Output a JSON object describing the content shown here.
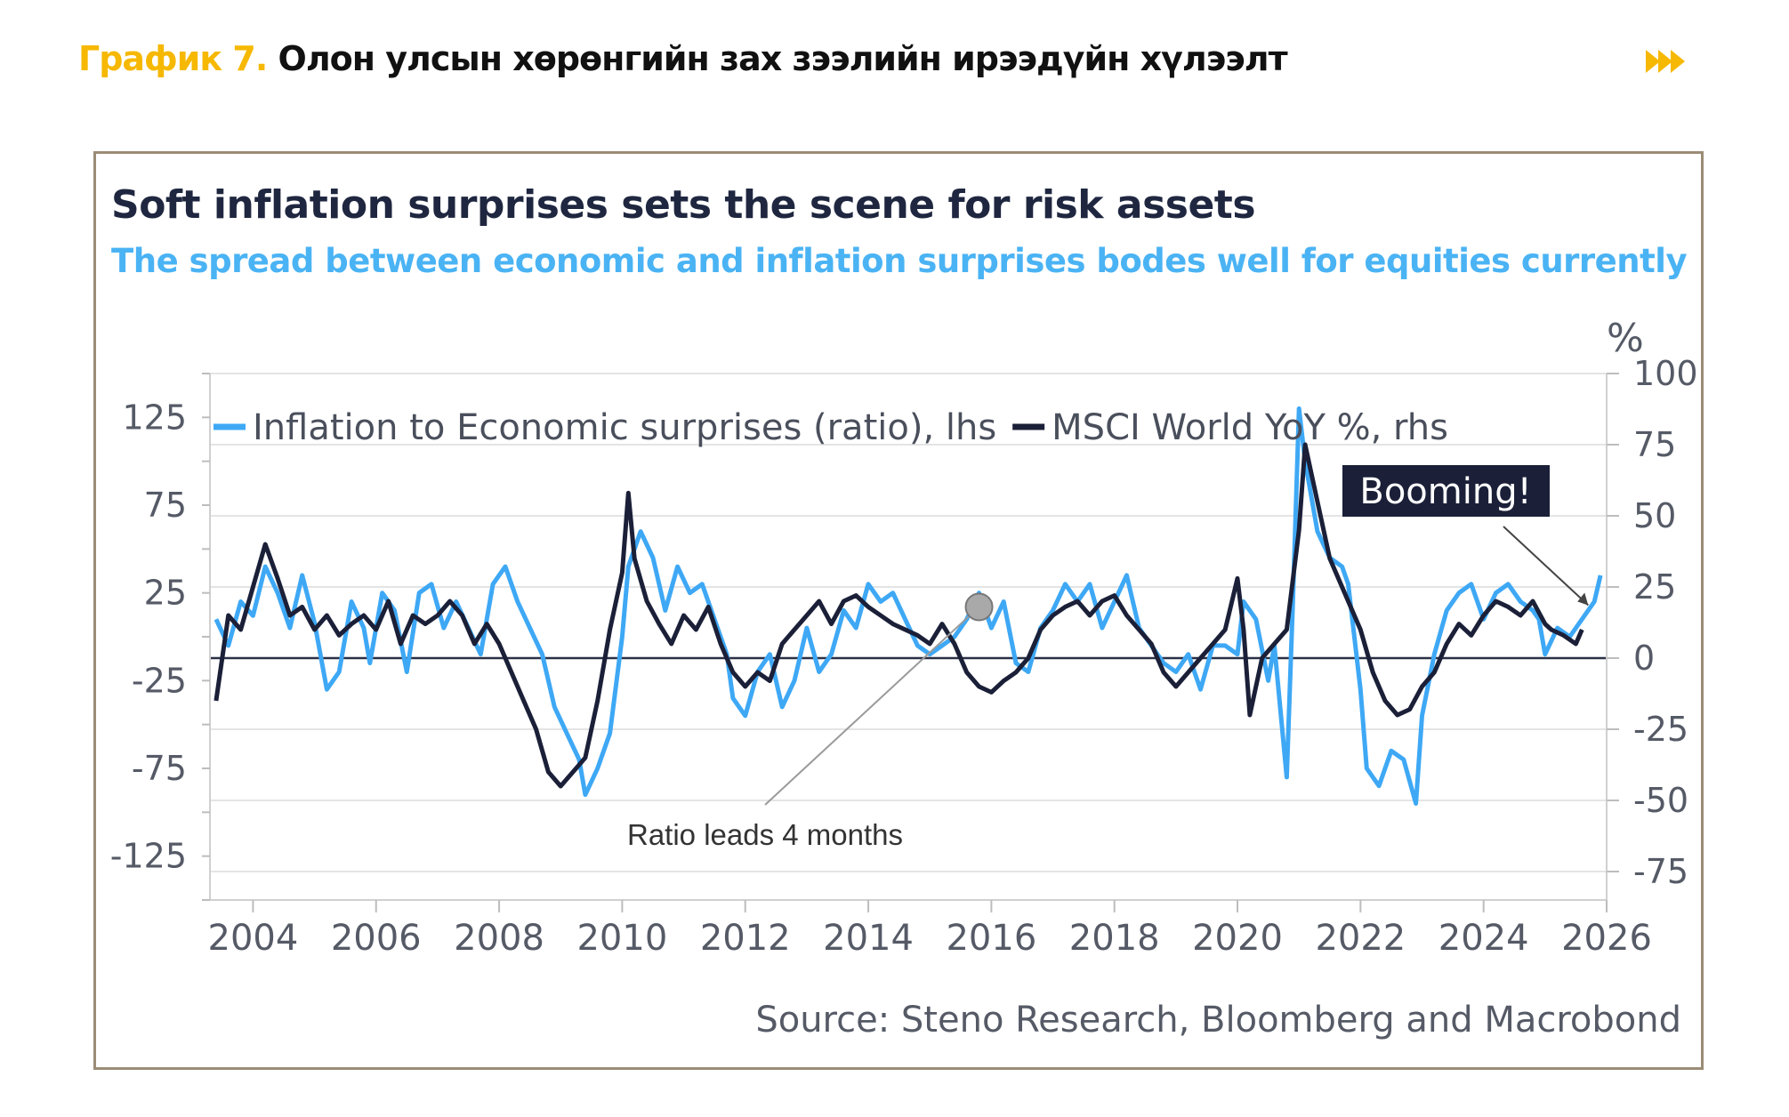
{
  "header": {
    "label": "График 7.",
    "title": "Олон улсын хөрөнгийн зах зээлийн ирээдүйн хүлээлт",
    "accent_color": "#f6b800",
    "icon": "fast-forward-icon"
  },
  "chart_data": {
    "type": "line",
    "title": "Soft inflation surprises sets the scene for risk assets",
    "subtitle": "The spread between economic and inflation surprises bodes well for equities currently",
    "source": "Source: Steno Research, Bloomberg and Macrobond",
    "x_axis": {
      "ticks": [
        "2004",
        "2006",
        "2008",
        "2010",
        "2012",
        "2014",
        "2016",
        "2018",
        "2020",
        "2022",
        "2024",
        "2026"
      ],
      "range": [
        2003.3,
        2026.0
      ]
    },
    "y_left": {
      "ticks": [
        "125",
        "75",
        "25",
        "-25",
        "-75",
        "-125"
      ],
      "range": [
        -150,
        150
      ]
    },
    "y_right": {
      "unit_label": "%",
      "ticks": [
        "100",
        "75",
        "50",
        "25",
        "0",
        "-25",
        "-50",
        "-75"
      ],
      "range": [
        -85,
        100
      ]
    },
    "legend": {
      "position": "top-left"
    },
    "grid": true,
    "series": [
      {
        "name": "Inflation to Economic surprises (ratio), lhs",
        "axis": "left",
        "color": "#3ea8f5",
        "points": [
          [
            2003.4,
            10
          ],
          [
            2003.6,
            -5
          ],
          [
            2003.8,
            20
          ],
          [
            2004.0,
            12
          ],
          [
            2004.2,
            40
          ],
          [
            2004.4,
            25
          ],
          [
            2004.6,
            5
          ],
          [
            2004.8,
            35
          ],
          [
            2005.0,
            8
          ],
          [
            2005.2,
            -30
          ],
          [
            2005.4,
            -20
          ],
          [
            2005.6,
            20
          ],
          [
            2005.8,
            5
          ],
          [
            2005.9,
            -15
          ],
          [
            2006.1,
            25
          ],
          [
            2006.3,
            15
          ],
          [
            2006.5,
            -20
          ],
          [
            2006.7,
            25
          ],
          [
            2006.9,
            30
          ],
          [
            2007.1,
            5
          ],
          [
            2007.3,
            20
          ],
          [
            2007.5,
            5
          ],
          [
            2007.7,
            -10
          ],
          [
            2007.9,
            30
          ],
          [
            2008.1,
            40
          ],
          [
            2008.3,
            20
          ],
          [
            2008.5,
            5
          ],
          [
            2008.7,
            -10
          ],
          [
            2008.9,
            -40
          ],
          [
            2009.1,
            -55
          ],
          [
            2009.3,
            -70
          ],
          [
            2009.4,
            -90
          ],
          [
            2009.6,
            -75
          ],
          [
            2009.8,
            -55
          ],
          [
            2010.0,
            0
          ],
          [
            2010.1,
            40
          ],
          [
            2010.3,
            60
          ],
          [
            2010.5,
            45
          ],
          [
            2010.7,
            15
          ],
          [
            2010.9,
            40
          ],
          [
            2011.1,
            25
          ],
          [
            2011.3,
            30
          ],
          [
            2011.5,
            10
          ],
          [
            2011.7,
            -10
          ],
          [
            2011.8,
            -35
          ],
          [
            2012.0,
            -45
          ],
          [
            2012.2,
            -20
          ],
          [
            2012.4,
            -10
          ],
          [
            2012.6,
            -40
          ],
          [
            2012.8,
            -25
          ],
          [
            2013.0,
            5
          ],
          [
            2013.2,
            -20
          ],
          [
            2013.4,
            -10
          ],
          [
            2013.6,
            15
          ],
          [
            2013.8,
            5
          ],
          [
            2014.0,
            30
          ],
          [
            2014.2,
            20
          ],
          [
            2014.4,
            25
          ],
          [
            2014.6,
            10
          ],
          [
            2014.8,
            -5
          ],
          [
            2015.0,
            -10
          ],
          [
            2015.2,
            -5
          ],
          [
            2015.4,
            0
          ],
          [
            2015.6,
            10
          ],
          [
            2015.8,
            25
          ],
          [
            2016.0,
            5
          ],
          [
            2016.2,
            20
          ],
          [
            2016.4,
            -15
          ],
          [
            2016.6,
            -20
          ],
          [
            2016.8,
            5
          ],
          [
            2017.0,
            15
          ],
          [
            2017.2,
            30
          ],
          [
            2017.4,
            20
          ],
          [
            2017.6,
            30
          ],
          [
            2017.8,
            5
          ],
          [
            2018.0,
            20
          ],
          [
            2018.2,
            35
          ],
          [
            2018.4,
            5
          ],
          [
            2018.6,
            -5
          ],
          [
            2018.8,
            -15
          ],
          [
            2019.0,
            -20
          ],
          [
            2019.2,
            -10
          ],
          [
            2019.4,
            -30
          ],
          [
            2019.6,
            -5
          ],
          [
            2019.8,
            -5
          ],
          [
            2020.0,
            -10
          ],
          [
            2020.1,
            20
          ],
          [
            2020.3,
            10
          ],
          [
            2020.5,
            -25
          ],
          [
            2020.6,
            -5
          ],
          [
            2020.8,
            -80
          ],
          [
            2020.9,
            20
          ],
          [
            2021.0,
            130
          ],
          [
            2021.1,
            100
          ],
          [
            2021.3,
            60
          ],
          [
            2021.5,
            45
          ],
          [
            2021.7,
            40
          ],
          [
            2021.8,
            30
          ],
          [
            2022.0,
            -30
          ],
          [
            2022.1,
            -75
          ],
          [
            2022.3,
            -85
          ],
          [
            2022.5,
            -65
          ],
          [
            2022.7,
            -70
          ],
          [
            2022.9,
            -95
          ],
          [
            2023.0,
            -45
          ],
          [
            2023.2,
            -10
          ],
          [
            2023.4,
            15
          ],
          [
            2023.6,
            25
          ],
          [
            2023.8,
            30
          ],
          [
            2024.0,
            10
          ],
          [
            2024.2,
            25
          ],
          [
            2024.4,
            30
          ],
          [
            2024.6,
            20
          ],
          [
            2024.8,
            15
          ],
          [
            2024.9,
            10
          ],
          [
            2025.0,
            -10
          ],
          [
            2025.2,
            5
          ],
          [
            2025.4,
            0
          ],
          [
            2025.6,
            10
          ],
          [
            2025.8,
            20
          ],
          [
            2025.9,
            35
          ]
        ]
      },
      {
        "name": "MSCI World YoY %, rhs",
        "axis": "right",
        "color": "#1b2038",
        "points": [
          [
            2003.4,
            -15
          ],
          [
            2003.6,
            15
          ],
          [
            2003.8,
            10
          ],
          [
            2004.0,
            25
          ],
          [
            2004.2,
            40
          ],
          [
            2004.4,
            28
          ],
          [
            2004.6,
            15
          ],
          [
            2004.8,
            18
          ],
          [
            2005.0,
            10
          ],
          [
            2005.2,
            15
          ],
          [
            2005.4,
            8
          ],
          [
            2005.6,
            12
          ],
          [
            2005.8,
            15
          ],
          [
            2006.0,
            10
          ],
          [
            2006.2,
            20
          ],
          [
            2006.4,
            5
          ],
          [
            2006.6,
            15
          ],
          [
            2006.8,
            12
          ],
          [
            2007.0,
            15
          ],
          [
            2007.2,
            20
          ],
          [
            2007.4,
            15
          ],
          [
            2007.6,
            5
          ],
          [
            2007.8,
            12
          ],
          [
            2008.0,
            5
          ],
          [
            2008.2,
            -5
          ],
          [
            2008.4,
            -15
          ],
          [
            2008.6,
            -25
          ],
          [
            2008.8,
            -40
          ],
          [
            2009.0,
            -45
          ],
          [
            2009.2,
            -40
          ],
          [
            2009.4,
            -35
          ],
          [
            2009.6,
            -15
          ],
          [
            2009.8,
            10
          ],
          [
            2010.0,
            30
          ],
          [
            2010.1,
            58
          ],
          [
            2010.2,
            35
          ],
          [
            2010.4,
            20
          ],
          [
            2010.6,
            12
          ],
          [
            2010.8,
            5
          ],
          [
            2011.0,
            15
          ],
          [
            2011.2,
            10
          ],
          [
            2011.4,
            18
          ],
          [
            2011.6,
            5
          ],
          [
            2011.8,
            -5
          ],
          [
            2012.0,
            -10
          ],
          [
            2012.2,
            -5
          ],
          [
            2012.4,
            -8
          ],
          [
            2012.6,
            5
          ],
          [
            2012.8,
            10
          ],
          [
            2013.0,
            15
          ],
          [
            2013.2,
            20
          ],
          [
            2013.4,
            12
          ],
          [
            2013.6,
            20
          ],
          [
            2013.8,
            22
          ],
          [
            2014.0,
            18
          ],
          [
            2014.2,
            15
          ],
          [
            2014.4,
            12
          ],
          [
            2014.6,
            10
          ],
          [
            2014.8,
            8
          ],
          [
            2015.0,
            5
          ],
          [
            2015.2,
            12
          ],
          [
            2015.4,
            5
          ],
          [
            2015.6,
            -5
          ],
          [
            2015.8,
            -10
          ],
          [
            2016.0,
            -12
          ],
          [
            2016.2,
            -8
          ],
          [
            2016.4,
            -5
          ],
          [
            2016.6,
            0
          ],
          [
            2016.8,
            10
          ],
          [
            2017.0,
            15
          ],
          [
            2017.2,
            18
          ],
          [
            2017.4,
            20
          ],
          [
            2017.6,
            15
          ],
          [
            2017.8,
            20
          ],
          [
            2018.0,
            22
          ],
          [
            2018.2,
            15
          ],
          [
            2018.4,
            10
          ],
          [
            2018.6,
            5
          ],
          [
            2018.8,
            -5
          ],
          [
            2019.0,
            -10
          ],
          [
            2019.2,
            -5
          ],
          [
            2019.4,
            0
          ],
          [
            2019.6,
            5
          ],
          [
            2019.8,
            10
          ],
          [
            2020.0,
            28
          ],
          [
            2020.1,
            10
          ],
          [
            2020.2,
            -20
          ],
          [
            2020.4,
            0
          ],
          [
            2020.6,
            5
          ],
          [
            2020.8,
            10
          ],
          [
            2021.0,
            45
          ],
          [
            2021.1,
            75
          ],
          [
            2021.3,
            55
          ],
          [
            2021.5,
            35
          ],
          [
            2021.7,
            25
          ],
          [
            2021.9,
            15
          ],
          [
            2022.0,
            10
          ],
          [
            2022.2,
            -5
          ],
          [
            2022.4,
            -15
          ],
          [
            2022.6,
            -20
          ],
          [
            2022.8,
            -18
          ],
          [
            2023.0,
            -10
          ],
          [
            2023.2,
            -5
          ],
          [
            2023.4,
            5
          ],
          [
            2023.6,
            12
          ],
          [
            2023.8,
            8
          ],
          [
            2024.0,
            15
          ],
          [
            2024.2,
            20
          ],
          [
            2024.4,
            18
          ],
          [
            2024.6,
            15
          ],
          [
            2024.8,
            20
          ],
          [
            2025.0,
            12
          ],
          [
            2025.1,
            10
          ],
          [
            2025.3,
            8
          ],
          [
            2025.5,
            5
          ],
          [
            2025.6,
            10
          ]
        ]
      }
    ],
    "annotations": [
      {
        "type": "box",
        "text": "Booming!",
        "arrow_to": [
          2025.7,
          18
        ],
        "axis": "left"
      },
      {
        "type": "text",
        "text": "Ratio leads 4 months",
        "arrow_to": [
          2015.8,
          17
        ],
        "axis": "left",
        "marker": "circle"
      }
    ]
  }
}
